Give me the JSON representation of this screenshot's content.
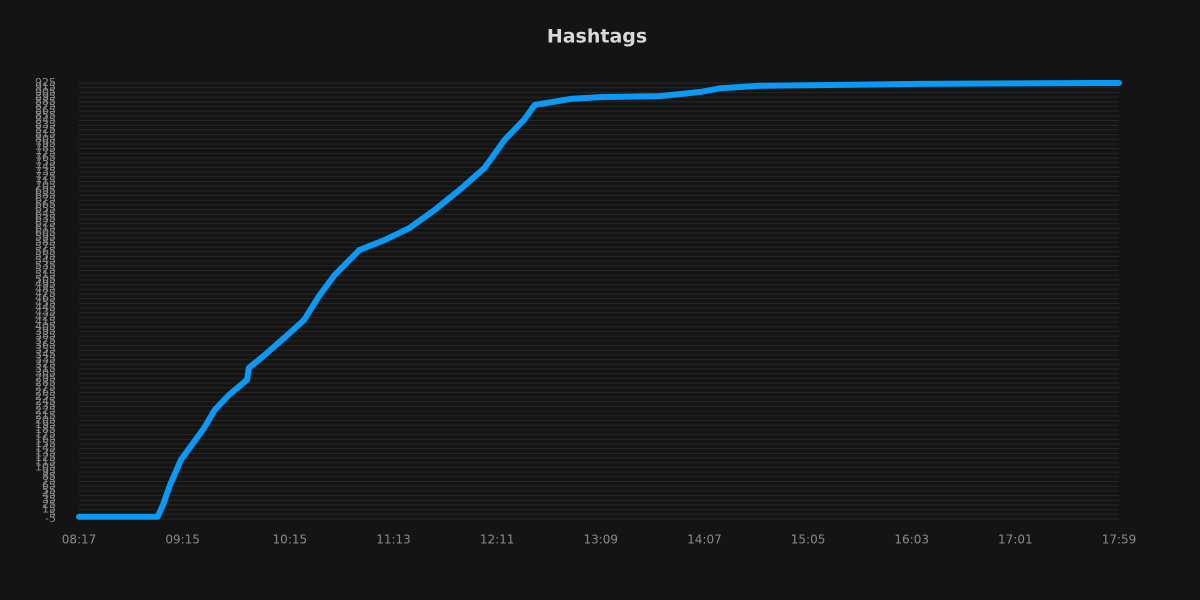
{
  "chart_data": {
    "type": "line",
    "title": "Hashtags",
    "color": "#0a9af5",
    "grid": true,
    "x": [
      "08:17",
      "09:01",
      "09:04",
      "09:08",
      "09:14",
      "09:27",
      "09:33",
      "09:41",
      "09:51",
      "09:52",
      "10:01",
      "10:15",
      "10:23",
      "10:31",
      "10:40",
      "10:54",
      "11:08",
      "11:22",
      "11:36",
      "11:50",
      "12:04",
      "12:15",
      "12:26",
      "12:32",
      "12:52",
      "13:09",
      "13:42",
      "14:05",
      "14:16",
      "14:38",
      "15:23",
      "16:07",
      "17:45",
      "17:59"
    ],
    "values": [
      0,
      0,
      25,
      68,
      121,
      189,
      228,
      260,
      292,
      317,
      345,
      392,
      420,
      469,
      515,
      569,
      590,
      616,
      654,
      697,
      744,
      803,
      846,
      878,
      891,
      895,
      897,
      906,
      914,
      919,
      921,
      923,
      925,
      925
    ],
    "xlim": [
      "08:17",
      "17:59"
    ],
    "xticks": [
      "08:17",
      "09:15",
      "10:15",
      "11:13",
      "12:11",
      "13:09",
      "14:07",
      "15:05",
      "16:03",
      "17:01",
      "17:59"
    ],
    "ylim": [
      -5,
      925
    ],
    "yticks": [
      -5,
      5,
      15,
      25,
      35,
      45,
      55,
      65,
      75,
      85,
      95,
      105,
      115,
      125,
      135,
      145,
      155,
      165,
      175,
      185,
      195,
      205,
      215,
      225,
      235,
      245,
      255,
      265,
      275,
      285,
      295,
      305,
      315,
      325,
      335,
      345,
      355,
      365,
      375,
      385,
      395,
      405,
      415,
      425,
      435,
      445,
      455,
      465,
      475,
      485,
      495,
      505,
      515,
      525,
      535,
      545,
      555,
      565,
      575,
      585,
      595,
      605,
      615,
      625,
      635,
      645,
      655,
      665,
      675,
      685,
      695,
      705,
      715,
      725,
      735,
      745,
      755,
      765,
      775,
      785,
      795,
      805,
      815,
      825,
      835,
      845,
      855,
      865,
      875,
      885,
      895,
      905,
      915,
      925
    ]
  }
}
